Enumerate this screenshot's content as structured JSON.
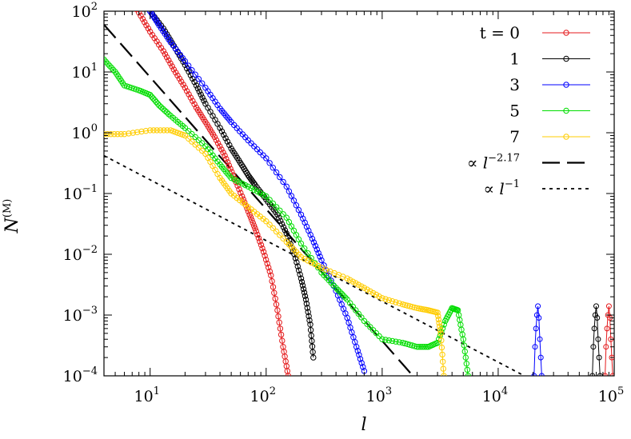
{
  "chart_data": {
    "type": "line",
    "title": "",
    "xlabel": "l",
    "ylabel": "N",
    "ylabel_superscript": "(M)",
    "x_scale": "log",
    "y_scale": "log",
    "xlim": [
      4,
      100000
    ],
    "ylim": [
      0.0001,
      100
    ],
    "grid": false,
    "legend_position": "top-right",
    "x_ticks": [
      {
        "base": "10",
        "exp": "1",
        "value": 10
      },
      {
        "base": "10",
        "exp": "2",
        "value": 100
      },
      {
        "base": "10",
        "exp": "3",
        "value": 1000
      },
      {
        "base": "10",
        "exp": "4",
        "value": 10000
      },
      {
        "base": "10",
        "exp": "5",
        "value": 100000
      }
    ],
    "y_ticks": [
      {
        "base": "10",
        "exp": "2",
        "value": 100
      },
      {
        "base": "10",
        "exp": "1",
        "value": 10
      },
      {
        "base": "10",
        "exp": "0",
        "value": 1
      },
      {
        "base": "10",
        "exp": "−1",
        "value": 0.1
      },
      {
        "base": "10",
        "exp": "−2",
        "value": 0.01
      },
      {
        "base": "10",
        "exp": "−3",
        "value": 0.001
      },
      {
        "base": "10",
        "exp": "−4",
        "value": 0.0001
      }
    ],
    "series": [
      {
        "name": "t = 0",
        "color": "#e41a1c",
        "marker": "circle",
        "points": [
          [
            6,
            200
          ],
          [
            8,
            95
          ],
          [
            10,
            46
          ],
          [
            13,
            22
          ],
          [
            16,
            11
          ],
          [
            20,
            5.5
          ],
          [
            25,
            2.6
          ],
          [
            30,
            1.5
          ],
          [
            36,
            0.85
          ],
          [
            44,
            0.42
          ],
          [
            52,
            0.2
          ],
          [
            62,
            0.09
          ],
          [
            72,
            0.045
          ],
          [
            82,
            0.024
          ],
          [
            95,
            0.011
          ],
          [
            110,
            0.0045
          ],
          [
            125,
            0.0012
          ],
          [
            140,
            0.0003
          ],
          [
            155,
            0.0001
          ]
        ],
        "spike_x": 90000
      },
      {
        "name": "1",
        "color": "#000000",
        "marker": "circle",
        "points": [
          [
            8,
            200
          ],
          [
            10,
            100
          ],
          [
            13,
            52
          ],
          [
            16,
            27
          ],
          [
            20,
            13
          ],
          [
            25,
            6
          ],
          [
            30,
            3
          ],
          [
            40,
            1.2
          ],
          [
            50,
            0.55
          ],
          [
            60,
            0.32
          ],
          [
            70,
            0.2
          ],
          [
            80,
            0.14
          ],
          [
            100,
            0.08
          ],
          [
            125,
            0.045
          ],
          [
            150,
            0.022
          ],
          [
            175,
            0.01
          ],
          [
            200,
            0.004
          ],
          [
            220,
            0.0018
          ],
          [
            240,
            0.0007
          ],
          [
            255,
            0.0002
          ]
        ],
        "spike_x": 70000
      },
      {
        "name": "3",
        "color": "#0000ff",
        "marker": "circle",
        "points": [
          [
            9,
            200
          ],
          [
            10,
            100
          ],
          [
            12,
            58
          ],
          [
            15,
            31
          ],
          [
            20,
            15
          ],
          [
            30,
            5.5
          ],
          [
            40,
            2.5
          ],
          [
            50,
            1.5
          ],
          [
            70,
            0.75
          ],
          [
            100,
            0.38
          ],
          [
            150,
            0.13
          ],
          [
            200,
            0.045
          ],
          [
            250,
            0.018
          ],
          [
            300,
            0.008
          ],
          [
            400,
            0.0025
          ],
          [
            500,
            0.0009
          ],
          [
            600,
            0.0003
          ],
          [
            700,
            0.00012
          ]
        ],
        "spike_x": 22000
      },
      {
        "name": "5",
        "color": "#00dd00",
        "marker": "circle",
        "points": [
          [
            4,
            16
          ],
          [
            5,
            10
          ],
          [
            6,
            6
          ],
          [
            8,
            5
          ],
          [
            10,
            4.2
          ],
          [
            12,
            2.8
          ],
          [
            15,
            1.9
          ],
          [
            20,
            1.2
          ],
          [
            30,
            0.6
          ],
          [
            40,
            0.3
          ],
          [
            50,
            0.18
          ],
          [
            70,
            0.13
          ],
          [
            100,
            0.09
          ],
          [
            150,
            0.04
          ],
          [
            200,
            0.015
          ],
          [
            300,
            0.005
          ],
          [
            400,
            0.0028
          ],
          [
            500,
            0.0018
          ],
          [
            700,
            0.0008
          ],
          [
            1000,
            0.0004
          ],
          [
            1500,
            0.00035
          ],
          [
            2000,
            0.0003
          ],
          [
            2500,
            0.0003
          ],
          [
            3000,
            0.00035
          ],
          [
            3500,
            0.0008
          ],
          [
            4000,
            0.0013
          ],
          [
            4500,
            0.0012
          ],
          [
            5000,
            0.0004
          ],
          [
            5500,
            0.0001
          ]
        ]
      },
      {
        "name": "7",
        "color": "#ffcc00",
        "marker": "circle",
        "points": [
          [
            4,
            0.95
          ],
          [
            6,
            0.95
          ],
          [
            10,
            1.1
          ],
          [
            15,
            1.1
          ],
          [
            20,
            0.9
          ],
          [
            30,
            0.45
          ],
          [
            40,
            0.18
          ],
          [
            50,
            0.1
          ],
          [
            70,
            0.06
          ],
          [
            100,
            0.035
          ],
          [
            150,
            0.016
          ],
          [
            200,
            0.009
          ],
          [
            300,
            0.006
          ],
          [
            500,
            0.004
          ],
          [
            700,
            0.0028
          ],
          [
            1000,
            0.0019
          ],
          [
            1500,
            0.0015
          ],
          [
            2000,
            0.0013
          ],
          [
            2500,
            0.0012
          ],
          [
            3000,
            0.0011
          ],
          [
            3200,
            0.0005
          ],
          [
            3400,
            0.0001
          ]
        ]
      }
    ],
    "reference_lines": [
      {
        "label_prefix": "∝ ",
        "label_var": "l",
        "label_exp": "−2.17",
        "style": "long-dash",
        "exponent": -2.17,
        "anchor_x": 4,
        "anchor_y": 60,
        "x_max": 1800
      },
      {
        "label_prefix": "∝ ",
        "label_var": "l",
        "label_exp": "−1",
        "style": "dotted",
        "exponent": -1,
        "anchor_x": 4,
        "anchor_y": 0.42,
        "x_max": 17000
      }
    ]
  }
}
